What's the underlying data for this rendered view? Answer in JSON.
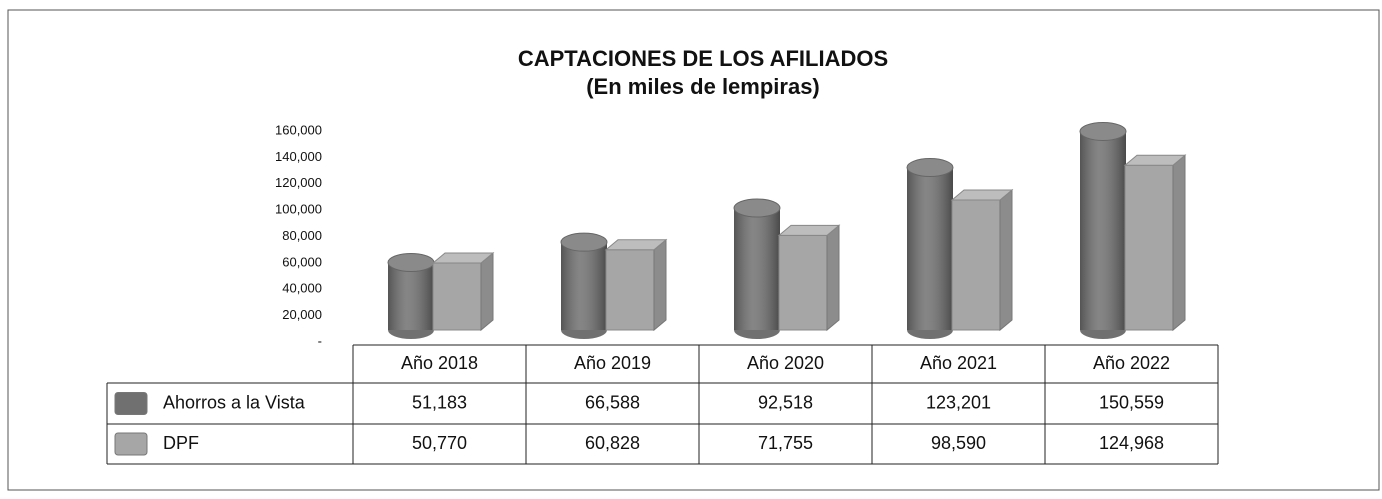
{
  "chart_data": {
    "type": "bar3d",
    "title": "CAPTACIONES DE LOS AFILIADOS",
    "subtitle": "(En miles de lempiras)",
    "categories": [
      "Año 2018",
      "Año 2019",
      "Año 2020",
      "Año 2021",
      "Año 2022"
    ],
    "series": [
      {
        "name": "Ahorros a la Vista",
        "color": "#707070",
        "shape": "cylinder",
        "values": [
          51183,
          66588,
          92518,
          123201,
          150559
        ],
        "value_labels": [
          "51,183",
          "66,588",
          "92,518",
          "123,201",
          "150,559"
        ]
      },
      {
        "name": "DPF",
        "color": "#a6a6a6",
        "shape": "box",
        "values": [
          50770,
          60828,
          71755,
          98590,
          124968
        ],
        "value_labels": [
          "50,770",
          "60,828",
          "71,755",
          "98,590",
          "124,968"
        ]
      }
    ],
    "ylim": [
      0,
      160000
    ],
    "yticks": [
      {
        "value": 0,
        "label": "-"
      },
      {
        "value": 20000,
        "label": "20,000"
      },
      {
        "value": 40000,
        "label": "40,000"
      },
      {
        "value": 60000,
        "label": "60,000"
      },
      {
        "value": 80000,
        "label": "80,000"
      },
      {
        "value": 100000,
        "label": "100,000"
      },
      {
        "value": 120000,
        "label": "120,000"
      },
      {
        "value": 140000,
        "label": "140,000"
      },
      {
        "value": 160000,
        "label": "160,000"
      }
    ]
  }
}
